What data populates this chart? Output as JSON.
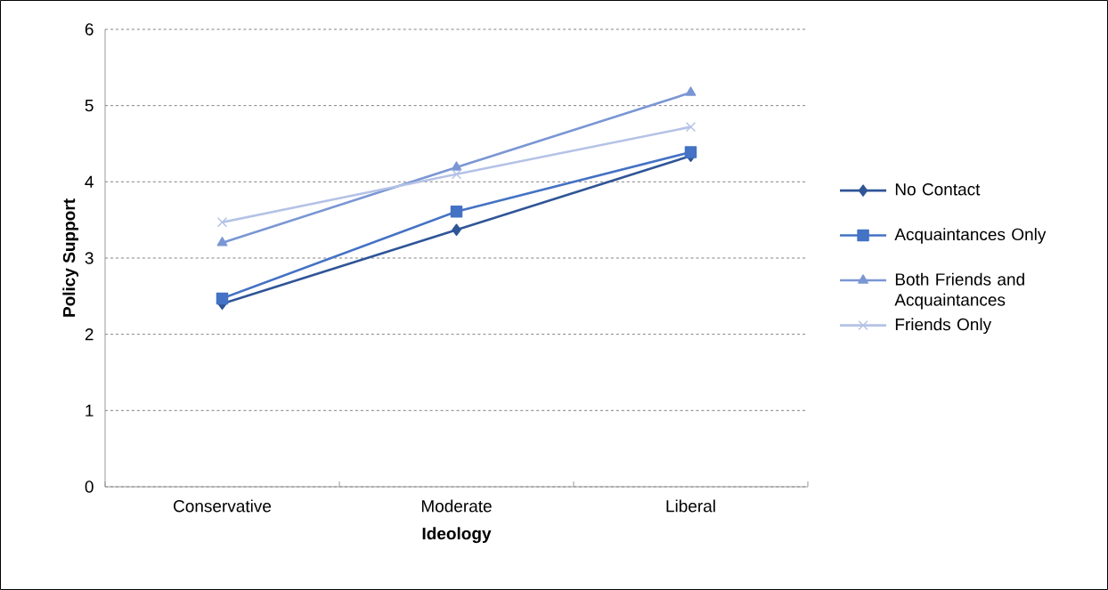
{
  "chart_data": {
    "type": "line",
    "xlabel": "Ideology",
    "ylabel": "Policy Support",
    "categories": [
      "Conservative",
      "Moderate",
      "Liberal"
    ],
    "series": [
      {
        "name": "No Contact",
        "color": "#2f5597",
        "marker": "diamond",
        "values": [
          2.4,
          3.37,
          4.34
        ]
      },
      {
        "name": "Acquaintances Only",
        "color": "#4472c4",
        "marker": "square",
        "values": [
          2.47,
          3.61,
          4.39
        ]
      },
      {
        "name": "Both Friends and Acquaintances",
        "color": "#7a96d4",
        "marker": "triangle",
        "values": [
          3.2,
          4.19,
          5.17
        ]
      },
      {
        "name": "Friends Only",
        "color": "#b4c2e6",
        "marker": "cross",
        "values": [
          3.47,
          4.1,
          4.72
        ]
      }
    ],
    "ylim": [
      0,
      6
    ],
    "yticks": [
      0,
      1,
      2,
      3,
      4,
      5,
      6
    ],
    "grid": "y",
    "legend": "right",
    "line_style": "solid"
  }
}
